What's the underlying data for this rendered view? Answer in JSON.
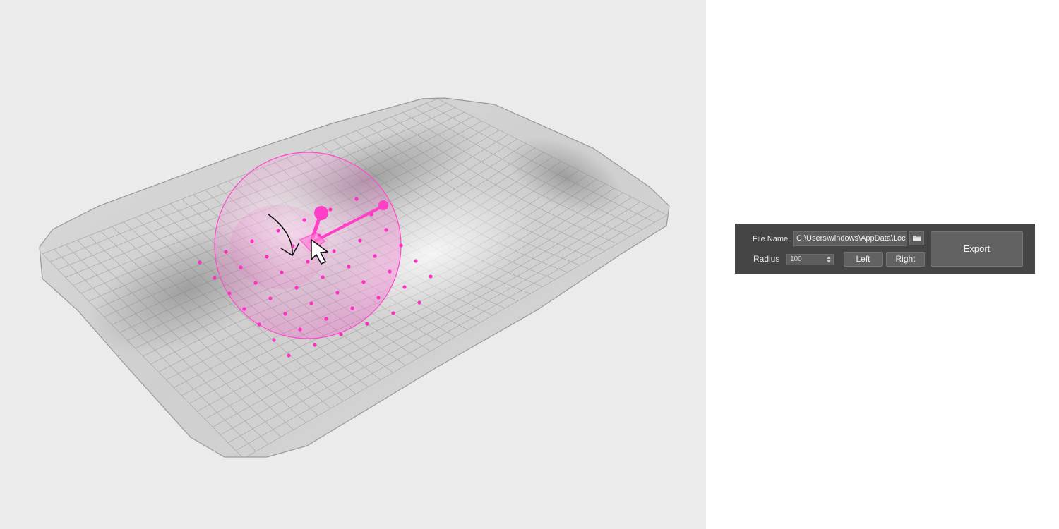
{
  "viewport": {
    "background": "#ebebeb",
    "surface_color": "#c8c8c8",
    "accent_color": "#ff3fc8",
    "icons": [
      "mesh-surface",
      "brush-sphere-icon",
      "rotate-arrow-icon",
      "mouse-cursor-icon"
    ]
  },
  "panel": {
    "background": "#454545",
    "file_name_label": "File Name",
    "file_path_value": "C:\\Users\\windows\\AppData\\Loc",
    "browse_icon": "folder-icon",
    "radius_label": "Radius",
    "radius_value": "100",
    "left_label": "Left",
    "right_label": "Right",
    "export_label": "Export"
  }
}
